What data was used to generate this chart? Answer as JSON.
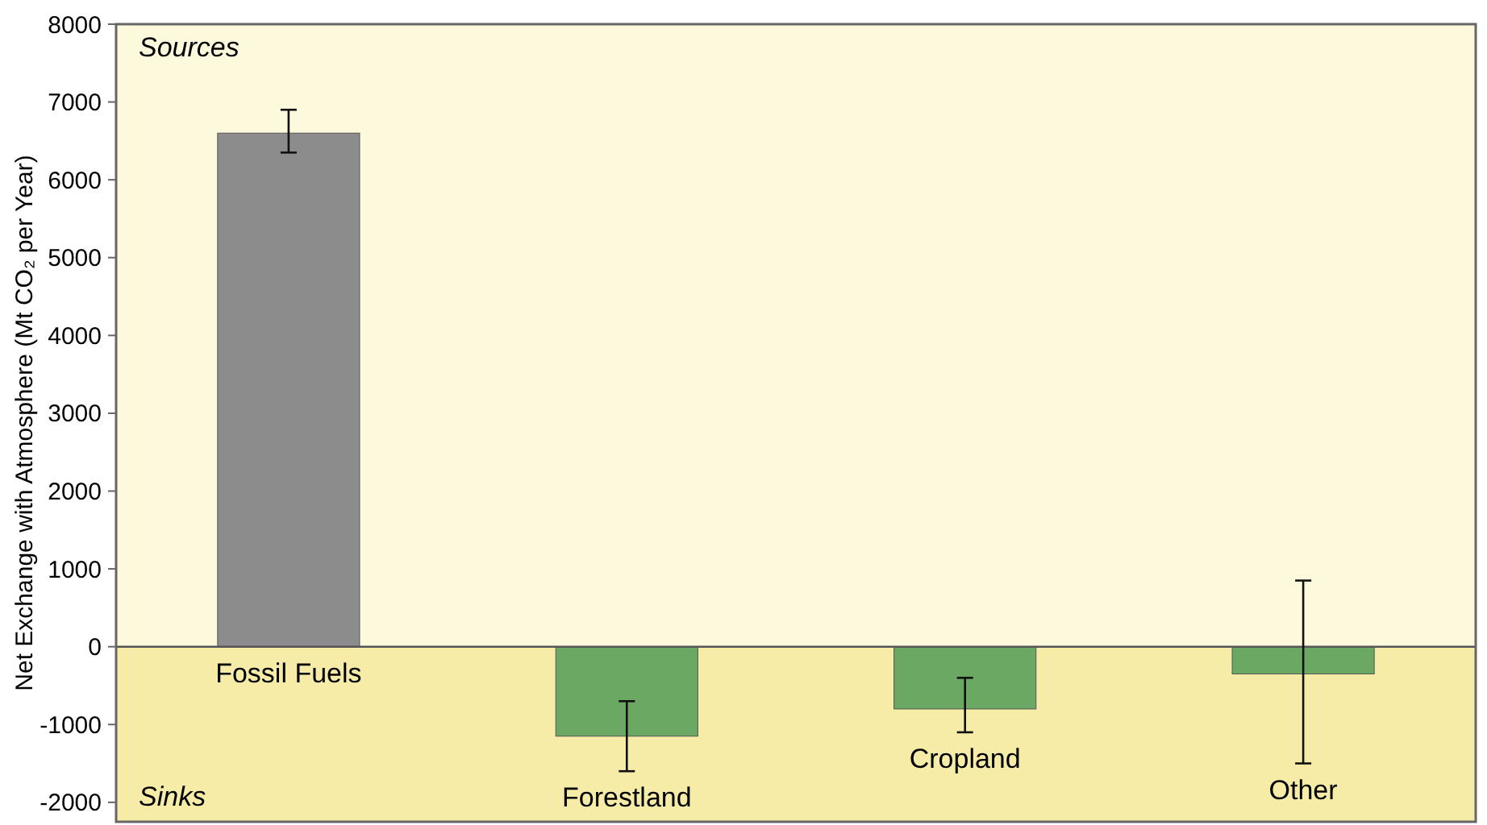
{
  "chart_data": {
    "type": "bar",
    "ylabel": "Net Exchange with Atmosphere (Mt CO₂ per Year)",
    "categories": [
      "Fossil Fuels",
      "Forestland",
      "Cropland",
      "Other"
    ],
    "values": [
      6600,
      -1150,
      -800,
      -350
    ],
    "colors": [
      "#8c8c8c",
      "#6aa864",
      "#6aa864",
      "#6aa864"
    ],
    "errors": [
      [
        6350,
        6900
      ],
      [
        -1600,
        -700
      ],
      [
        -1100,
        -400
      ],
      [
        -1500,
        850
      ]
    ],
    "ylim": [
      -2250,
      8000
    ],
    "yticks": [
      -2000,
      -1000,
      0,
      1000,
      2000,
      3000,
      4000,
      5000,
      6000,
      7000,
      8000
    ],
    "bands": [
      {
        "axis": "y",
        "from": 0,
        "to": 8000,
        "label": "Sources",
        "color": "#fcf9dc"
      },
      {
        "axis": "y",
        "from": -2250,
        "to": 0,
        "label": "Sinks",
        "color": "#f6eca8"
      }
    ]
  }
}
